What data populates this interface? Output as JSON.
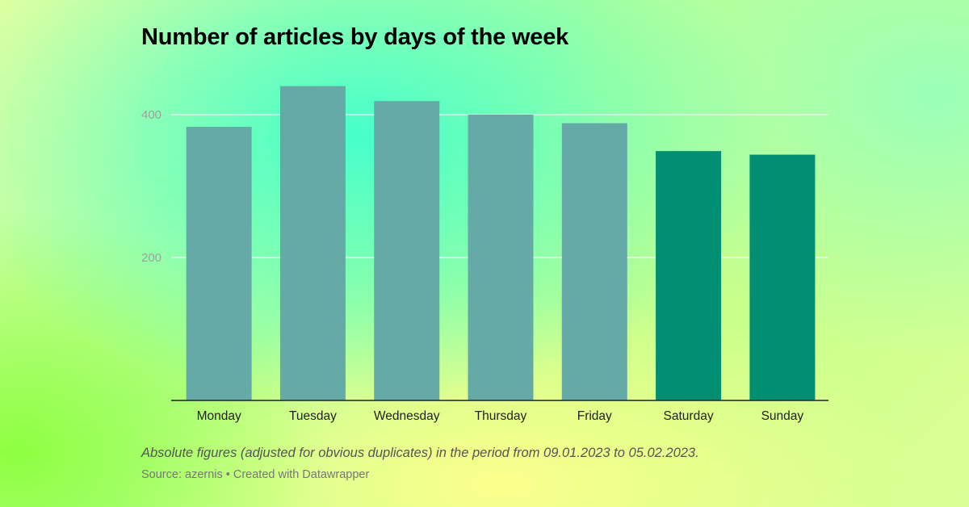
{
  "chart_data": {
    "type": "bar",
    "title": "Number of articles by days of the week",
    "categories": [
      "Monday",
      "Tuesday",
      "Wednesday",
      "Thursday",
      "Friday",
      "Saturday",
      "Sunday"
    ],
    "values": [
      383,
      440,
      419,
      400,
      388,
      349,
      344
    ],
    "bar_colors": [
      "#66aaa8",
      "#66aaa8",
      "#66aaa8",
      "#66aaa8",
      "#66aaa8",
      "#008f72",
      "#008f72"
    ],
    "ylim": [
      0,
      450
    ],
    "y_ticks": [
      200,
      400
    ],
    "grid": true,
    "xlabel": "",
    "ylabel": ""
  },
  "footer": {
    "note": "Absolute figures (adjusted for obvious duplicates) in the period from 09.01.2023 to 05.02.2023.",
    "source": "Source: azernis • Created with Datawrapper"
  }
}
